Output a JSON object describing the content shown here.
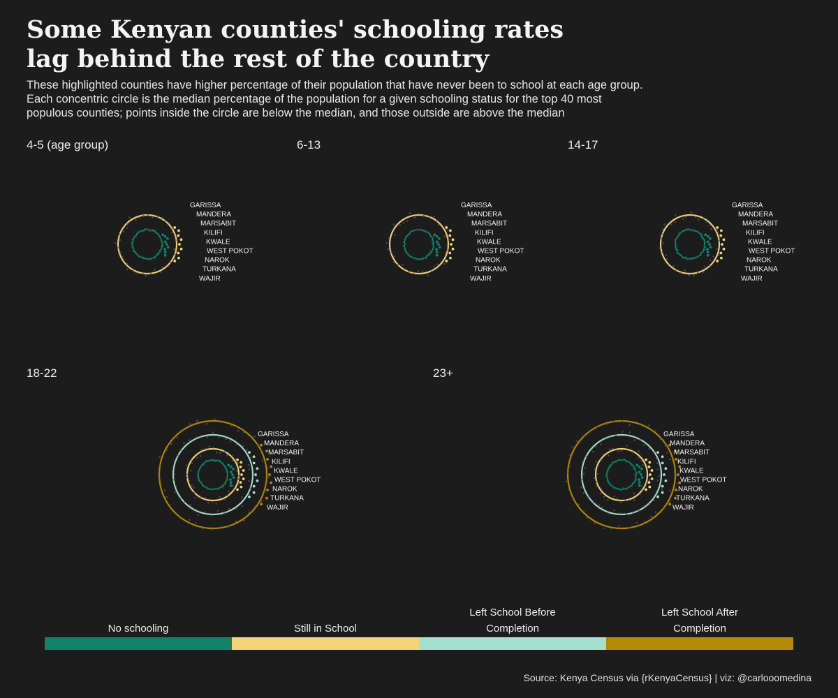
{
  "title_line1": "Some Kenyan counties' schooling rates",
  "title_line2": "lag behind the rest of the country",
  "subtitle_line1": "These highlighted counties have higher percentage of their population that have never been to school at each age group.",
  "subtitle_line2": "Each concentric circle is the median percentage of the population for a given schooling status for the top 40 most",
  "subtitle_line3": "populous counties; points inside the circle are below the median, and those outside are above the median",
  "source": "Source: Kenya Census via {rKenyaCensus} | viz: @carlooomedina",
  "colors": {
    "background": "#1c1c1c",
    "no_schooling": "#12826a",
    "still_in_school": "#f4d37a",
    "left_before": "#a6dfd0",
    "left_after": "#b58a06",
    "background_points": "#555555"
  },
  "legend": [
    {
      "label_line1": "",
      "label_line2": "No schooling",
      "color": "#12826a"
    },
    {
      "label_line1": "",
      "label_line2": "Still in School",
      "color": "#f4d37a"
    },
    {
      "label_line1": "Left School Before",
      "label_line2": "Completion",
      "color": "#a6dfd0"
    },
    {
      "label_line1": "Left School After",
      "label_line2": "Completion",
      "color": "#b58a06"
    }
  ],
  "chart_data": {
    "type": "scatter",
    "layout": "radial small multiples",
    "description_of_encoding": "",
    "highlighted_counties": [
      "GARISSA",
      "MANDERA",
      "MARSABIT",
      "KILIFI",
      "KWALE",
      "WEST POKOT",
      "NAROK",
      "TURKANA",
      "WAJIR"
    ],
    "panels": [
      {
        "label": "4-5 (age group)",
        "statuses": [
          "No schooling",
          "Still in School"
        ]
      },
      {
        "label": "6-13",
        "statuses": [
          "No schooling",
          "Still in School"
        ]
      },
      {
        "label": "14-17",
        "statuses": [
          "No schooling",
          "Still in School"
        ]
      },
      {
        "label": "18-22",
        "statuses": [
          "No schooling",
          "Still in School",
          "Left School Before Completion",
          "Left School After Completion"
        ]
      },
      {
        "label": "23+",
        "statuses": [
          "No schooling",
          "Still in School",
          "Left School Before Completion",
          "Left School After Completion"
        ]
      }
    ]
  }
}
